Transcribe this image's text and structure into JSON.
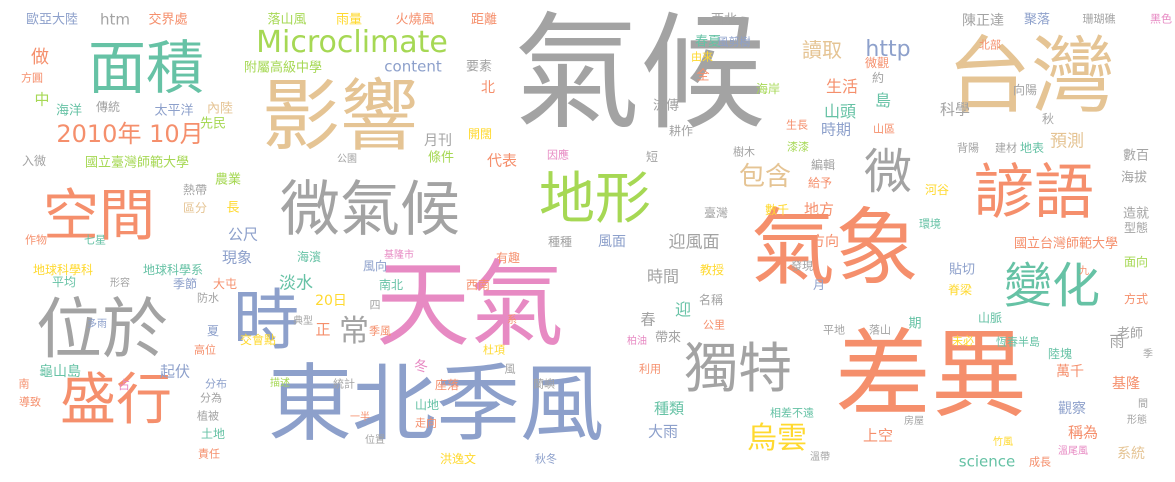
{
  "palette": {
    "gray": "#a3a3a3",
    "orange": "#f58f6c",
    "teal": "#66c2a5",
    "blue": "#8da0cb",
    "pink": "#e78ac3",
    "green": "#a6d854",
    "yellow": "#ffd92f",
    "tan": "#e5c494"
  },
  "words": [
    {
      "text": "氣候",
      "color": "gray"
    },
    {
      "text": "台灣",
      "color": "tan"
    },
    {
      "text": "影響",
      "color": "tan"
    },
    {
      "text": "面積",
      "color": "teal"
    },
    {
      "text": "天氣",
      "color": "pink"
    },
    {
      "text": "氣象",
      "color": "orange"
    },
    {
      "text": "差異",
      "color": "orange"
    },
    {
      "text": "東北季風",
      "color": "blue"
    },
    {
      "text": "微氣候",
      "color": "gray"
    },
    {
      "text": "諺語",
      "color": "orange"
    },
    {
      "text": "空間",
      "color": "orange"
    },
    {
      "text": "位於",
      "color": "gray"
    },
    {
      "text": "盛行",
      "color": "orange"
    },
    {
      "text": "時",
      "color": "blue"
    },
    {
      "text": "地形",
      "color": "green"
    },
    {
      "text": "變化",
      "color": "teal"
    },
    {
      "text": "獨特",
      "color": "gray"
    },
    {
      "text": "微",
      "color": "gray"
    },
    {
      "text": "Microclimate",
      "color": "green"
    },
    {
      "text": "2010年 10月",
      "color": "orange"
    },
    {
      "text": "包含",
      "color": "tan"
    },
    {
      "text": "烏雲",
      "color": "yellow"
    },
    {
      "text": "常",
      "color": "gray"
    },
    {
      "text": "歐亞大陸",
      "color": "blue"
    },
    {
      "text": "htm",
      "color": "gray"
    },
    {
      "text": "交界處",
      "color": "orange"
    },
    {
      "text": "落山風",
      "color": "green"
    },
    {
      "text": "雨量",
      "color": "yellow"
    },
    {
      "text": "火燒風",
      "color": "orange"
    },
    {
      "text": "距離",
      "color": "orange"
    },
    {
      "text": "西北",
      "color": "gray"
    },
    {
      "text": "陳正達",
      "color": "gray"
    },
    {
      "text": "聚落",
      "color": "blue"
    },
    {
      "text": "珊瑚礁",
      "color": "gray"
    },
    {
      "text": "黑色",
      "color": "pink"
    },
    {
      "text": "做",
      "color": "orange"
    },
    {
      "text": "中",
      "color": "green"
    },
    {
      "text": "附屬高級中學",
      "color": "green"
    },
    {
      "text": "content",
      "color": "blue"
    },
    {
      "text": "要素",
      "color": "gray"
    },
    {
      "text": "讀取",
      "color": "tan"
    },
    {
      "text": "http",
      "color": "blue"
    },
    {
      "text": "風剪樹",
      "color": "blue"
    },
    {
      "text": "北部",
      "color": "orange"
    },
    {
      "text": "方圓",
      "color": "orange"
    },
    {
      "text": "海洋",
      "color": "teal"
    },
    {
      "text": "傳統",
      "color": "gray"
    },
    {
      "text": "太平洋",
      "color": "blue"
    },
    {
      "text": "內陸",
      "color": "tan"
    },
    {
      "text": "先民",
      "color": "green"
    },
    {
      "text": "月刊",
      "color": "gray"
    },
    {
      "text": "北",
      "color": "orange"
    },
    {
      "text": "生活",
      "color": "orange"
    },
    {
      "text": "山頭",
      "color": "teal"
    },
    {
      "text": "微觀",
      "color": "orange"
    },
    {
      "text": "約",
      "color": "gray"
    },
    {
      "text": "科學",
      "color": "gray"
    },
    {
      "text": "向陽",
      "color": "gray"
    },
    {
      "text": "海岸",
      "color": "green"
    },
    {
      "text": "春夏",
      "color": "teal"
    },
    {
      "text": "由來",
      "color": "yellow"
    },
    {
      "text": "全",
      "color": "orange"
    },
    {
      "text": "流傳",
      "color": "gray"
    },
    {
      "text": "島",
      "color": "teal"
    },
    {
      "text": "時期",
      "color": "blue"
    },
    {
      "text": "山區",
      "color": "orange"
    },
    {
      "text": "生長",
      "color": "orange"
    },
    {
      "text": "秋",
      "color": "gray"
    },
    {
      "text": "漆漆",
      "color": "green"
    },
    {
      "text": "預測",
      "color": "tan"
    },
    {
      "text": "耕作",
      "color": "gray"
    },
    {
      "text": "開闊",
      "color": "yellow"
    },
    {
      "text": "入微",
      "color": "gray"
    },
    {
      "text": "國立臺灣師範大學",
      "color": "green"
    },
    {
      "text": "代表",
      "color": "orange"
    },
    {
      "text": "條件",
      "color": "green"
    },
    {
      "text": "短",
      "color": "gray"
    },
    {
      "text": "因應",
      "color": "pink"
    },
    {
      "text": "樹木",
      "color": "gray"
    },
    {
      "text": "編輯",
      "color": "gray"
    },
    {
      "text": "背陽",
      "color": "gray"
    },
    {
      "text": "建材",
      "color": "gray"
    },
    {
      "text": "地表",
      "color": "teal"
    },
    {
      "text": "數百",
      "color": "gray"
    },
    {
      "text": "公園",
      "color": "gray"
    },
    {
      "text": "熱帶",
      "color": "gray"
    },
    {
      "text": "農業",
      "color": "green"
    },
    {
      "text": "區分",
      "color": "tan"
    },
    {
      "text": "長",
      "color": "yellow"
    },
    {
      "text": "給予",
      "color": "orange"
    },
    {
      "text": "河谷",
      "color": "yellow"
    },
    {
      "text": "海拔",
      "color": "gray"
    },
    {
      "text": "數千",
      "color": "yellow"
    },
    {
      "text": "地方",
      "color": "orange"
    },
    {
      "text": "環境",
      "color": "teal"
    },
    {
      "text": "造就",
      "color": "gray"
    },
    {
      "text": "型態",
      "color": "gray"
    },
    {
      "text": "作物",
      "color": "orange"
    },
    {
      "text": "七星",
      "color": "teal"
    },
    {
      "text": "公尺",
      "color": "blue"
    },
    {
      "text": "臺灣",
      "color": "gray"
    },
    {
      "text": "迎風面",
      "color": "gray"
    },
    {
      "text": "風面",
      "color": "blue"
    },
    {
      "text": "種種",
      "color": "gray"
    },
    {
      "text": "方向",
      "color": "orange"
    },
    {
      "text": "國立台灣師範大學",
      "color": "orange"
    },
    {
      "text": "地球科學科",
      "color": "yellow"
    },
    {
      "text": "地球科學系",
      "color": "teal"
    },
    {
      "text": "現象",
      "color": "blue"
    },
    {
      "text": "海濱",
      "color": "teal"
    },
    {
      "text": "基隆市",
      "color": "pink"
    },
    {
      "text": "有趣",
      "color": "orange"
    },
    {
      "text": "時間",
      "color": "gray"
    },
    {
      "text": "教授",
      "color": "yellow"
    },
    {
      "text": "發現",
      "color": "gray"
    },
    {
      "text": "貼切",
      "color": "blue"
    },
    {
      "text": "面向",
      "color": "green"
    },
    {
      "text": "平均",
      "color": "teal"
    },
    {
      "text": "形容",
      "color": "gray"
    },
    {
      "text": "季節",
      "color": "blue"
    },
    {
      "text": "大屯",
      "color": "orange"
    },
    {
      "text": "淡水",
      "color": "teal"
    },
    {
      "text": "風向",
      "color": "blue"
    },
    {
      "text": "西南",
      "color": "orange"
    },
    {
      "text": "名稱",
      "color": "gray"
    },
    {
      "text": "九",
      "color": "orange"
    },
    {
      "text": "防水",
      "color": "gray"
    },
    {
      "text": "20日",
      "color": "yellow"
    },
    {
      "text": "南北",
      "color": "teal"
    },
    {
      "text": "迎",
      "color": "teal"
    },
    {
      "text": "月",
      "color": "blue"
    },
    {
      "text": "脊梁",
      "color": "yellow"
    },
    {
      "text": "方式",
      "color": "orange"
    },
    {
      "text": "多雨",
      "color": "blue"
    },
    {
      "text": "典型",
      "color": "gray"
    },
    {
      "text": "正",
      "color": "orange"
    },
    {
      "text": "四",
      "color": "gray"
    },
    {
      "text": "春",
      "color": "gray"
    },
    {
      "text": "公里",
      "color": "orange"
    },
    {
      "text": "山脈",
      "color": "teal"
    },
    {
      "text": "老師",
      "color": "gray"
    },
    {
      "text": "夏",
      "color": "blue"
    },
    {
      "text": "季風",
      "color": "orange"
    },
    {
      "text": "帶來",
      "color": "gray"
    },
    {
      "text": "期",
      "color": "teal"
    },
    {
      "text": "平地",
      "color": "gray"
    },
    {
      "text": "落山",
      "color": "gray"
    },
    {
      "text": "未必",
      "color": "yellow"
    },
    {
      "text": "恆春半島",
      "color": "teal"
    },
    {
      "text": "季",
      "color": "gray"
    },
    {
      "text": "高位",
      "color": "orange"
    },
    {
      "text": "交會點",
      "color": "yellow"
    },
    {
      "text": "系",
      "color": "orange"
    },
    {
      "text": "杜項",
      "color": "yellow"
    },
    {
      "text": "柏油",
      "color": "pink"
    },
    {
      "text": "陸塊",
      "color": "teal"
    },
    {
      "text": "龜山島",
      "color": "teal"
    },
    {
      "text": "起伏",
      "color": "blue"
    },
    {
      "text": "冬",
      "color": "pink"
    },
    {
      "text": "雨",
      "color": "gray"
    },
    {
      "text": "萬千",
      "color": "orange"
    },
    {
      "text": "南",
      "color": "orange"
    },
    {
      "text": "占",
      "color": "pink"
    },
    {
      "text": "分布",
      "color": "blue"
    },
    {
      "text": "描述",
      "color": "green"
    },
    {
      "text": "統計",
      "color": "gray"
    },
    {
      "text": "座落",
      "color": "orange"
    },
    {
      "text": "風",
      "color": "gray"
    },
    {
      "text": "蘭嶼",
      "color": "gray"
    },
    {
      "text": "利用",
      "color": "orange"
    },
    {
      "text": "基隆",
      "color": "orange"
    },
    {
      "text": "導致",
      "color": "orange"
    },
    {
      "text": "分為",
      "color": "gray"
    },
    {
      "text": "植被",
      "color": "gray"
    },
    {
      "text": "土地",
      "color": "teal"
    },
    {
      "text": "一半",
      "color": "orange"
    },
    {
      "text": "山地",
      "color": "teal"
    },
    {
      "text": "走向",
      "color": "orange"
    },
    {
      "text": "位置",
      "color": "gray"
    },
    {
      "text": "種類",
      "color": "teal"
    },
    {
      "text": "觀察",
      "color": "blue"
    },
    {
      "text": "稱為",
      "color": "orange"
    },
    {
      "text": "形態",
      "color": "gray"
    },
    {
      "text": "間",
      "color": "gray"
    },
    {
      "text": "相差不遠",
      "color": "teal"
    },
    {
      "text": "房屋",
      "color": "gray"
    },
    {
      "text": "竹風",
      "color": "yellow"
    },
    {
      "text": "溫尾風",
      "color": "pink"
    },
    {
      "text": "責任",
      "color": "orange"
    },
    {
      "text": "洪逸文",
      "color": "yellow"
    },
    {
      "text": "秋冬",
      "color": "blue"
    },
    {
      "text": "大雨",
      "color": "blue"
    },
    {
      "text": "上空",
      "color": "orange"
    },
    {
      "text": "science",
      "color": "teal"
    },
    {
      "text": "溫帶",
      "color": "gray"
    },
    {
      "text": "成長",
      "color": "orange"
    },
    {
      "text": "系統",
      "color": "tan"
    }
  ]
}
